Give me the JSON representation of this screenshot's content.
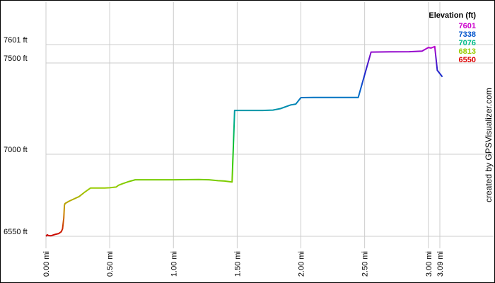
{
  "chart_data": {
    "type": "line",
    "xlabel": "",
    "ylabel": "",
    "xlim": [
      0,
      3.15
    ],
    "ylim": [
      6550,
      7601
    ],
    "y_ticks": [
      {
        "value": 6550,
        "label": "6550 ft"
      },
      {
        "value": 7000,
        "label": "7000 ft"
      },
      {
        "value": 7500,
        "label": "7500 ft"
      },
      {
        "value": 7601,
        "label": "7601 ft"
      }
    ],
    "x_ticks": [
      {
        "value": 0.0,
        "label": "0.00 mi"
      },
      {
        "value": 0.5,
        "label": "0.50 mi"
      },
      {
        "value": 1.0,
        "label": "1.00 mi"
      },
      {
        "value": 1.5,
        "label": "1.50 mi"
      },
      {
        "value": 2.0,
        "label": "2.00 mi"
      },
      {
        "value": 2.5,
        "label": "2.50 mi"
      },
      {
        "value": 3.0,
        "label": "3.00 mi"
      },
      {
        "value": 3.09,
        "label": "3.09 mi"
      }
    ],
    "grid": true,
    "legend": {
      "title": "Elevation (ft)",
      "placement": "top-right",
      "entries": [
        {
          "label": "7601",
          "color": "#cc00cc"
        },
        {
          "label": "7338",
          "color": "#0055cc"
        },
        {
          "label": "7076",
          "color": "#00bb88"
        },
        {
          "label": "6813",
          "color": "#99cc00"
        },
        {
          "label": "6550",
          "color": "#dd0000"
        }
      ]
    },
    "gradient": [
      {
        "value": 6550,
        "color": "#cc0000"
      },
      {
        "value": 6680,
        "color": "#cc8800"
      },
      {
        "value": 6813,
        "color": "#99cc00"
      },
      {
        "value": 6950,
        "color": "#33cc00"
      },
      {
        "value": 7076,
        "color": "#00bb44"
      },
      {
        "value": 7200,
        "color": "#00aa99"
      },
      {
        "value": 7338,
        "color": "#0066cc"
      },
      {
        "value": 7450,
        "color": "#2222cc"
      },
      {
        "value": 7530,
        "color": "#6611cc"
      },
      {
        "value": 7601,
        "color": "#cc00cc"
      }
    ],
    "series": [
      {
        "points": [
          [
            0.0,
            6550
          ],
          [
            0.01,
            6558
          ],
          [
            0.02,
            6554
          ],
          [
            0.04,
            6553
          ],
          [
            0.07,
            6560
          ],
          [
            0.1,
            6565
          ],
          [
            0.12,
            6575
          ],
          [
            0.13,
            6590
          ],
          [
            0.14,
            6650
          ],
          [
            0.145,
            6720
          ],
          [
            0.15,
            6730
          ],
          [
            0.18,
            6742
          ],
          [
            0.22,
            6755
          ],
          [
            0.26,
            6768
          ],
          [
            0.3,
            6790
          ],
          [
            0.35,
            6815
          ],
          [
            0.4,
            6815
          ],
          [
            0.46,
            6815
          ],
          [
            0.5,
            6816
          ],
          [
            0.55,
            6820
          ],
          [
            0.57,
            6830
          ],
          [
            0.6,
            6838
          ],
          [
            0.65,
            6850
          ],
          [
            0.7,
            6860
          ],
          [
            0.8,
            6860
          ],
          [
            1.0,
            6860
          ],
          [
            1.2,
            6861
          ],
          [
            1.28,
            6860
          ],
          [
            1.35,
            6855
          ],
          [
            1.4,
            6853
          ],
          [
            1.46,
            6848
          ],
          [
            1.48,
            7240
          ],
          [
            1.6,
            7240
          ],
          [
            1.7,
            7240
          ],
          [
            1.78,
            7242
          ],
          [
            1.84,
            7250
          ],
          [
            1.92,
            7270
          ],
          [
            1.96,
            7275
          ],
          [
            2.0,
            7310
          ],
          [
            2.1,
            7311
          ],
          [
            2.3,
            7311
          ],
          [
            2.45,
            7311
          ],
          [
            2.55,
            7560
          ],
          [
            2.7,
            7561
          ],
          [
            2.85,
            7562
          ],
          [
            2.95,
            7565
          ],
          [
            3.0,
            7585
          ],
          [
            3.02,
            7582
          ],
          [
            3.05,
            7590
          ],
          [
            3.07,
            7460
          ],
          [
            3.11,
            7424
          ]
        ]
      }
    ]
  },
  "credit": "created by GPSVisualizer.com"
}
